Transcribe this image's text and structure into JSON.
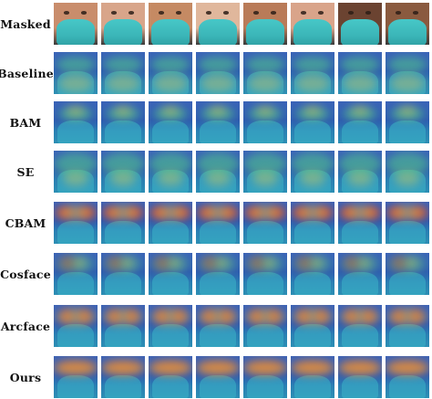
{
  "figure": {
    "rows": [
      {
        "label": "Masked",
        "kind": "masked"
      },
      {
        "label": "Baseline",
        "kind": "baseline"
      },
      {
        "label": "BAM",
        "kind": "bam"
      },
      {
        "label": "SE",
        "kind": "se"
      },
      {
        "label": "CBAM",
        "kind": "cbam"
      },
      {
        "label": "Cosface",
        "kind": "cosface"
      },
      {
        "label": "Arcface",
        "kind": "arcface"
      },
      {
        "label": "Ours",
        "kind": "ours"
      }
    ],
    "columns": 8,
    "skin_tones": [
      "#c98d6c",
      "#d8a58a",
      "#c58a63",
      "#e0b79c",
      "#b97b58",
      "#d9a48a",
      "#6b4331",
      "#8a5a3f"
    ],
    "colors": {
      "mask_teal": "#47c7c7",
      "heat_hot": "#e23a1e",
      "heat_warm": "#f2d14a",
      "heat_mid": "#56d08a",
      "heat_cool": "#2d59b0"
    }
  }
}
